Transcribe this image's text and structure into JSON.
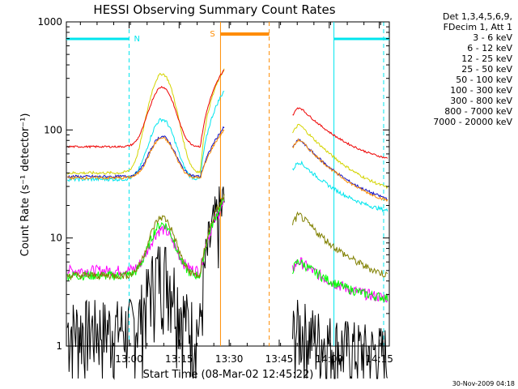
{
  "chart_data": {
    "type": "line",
    "title": "HESSI Observing Summary Count Rates",
    "xlabel": "Start Time (08-Mar-02 12:45:22)",
    "ylabel": "Count Rate (s⁻¹ detector⁻¹)",
    "y_scale": "log",
    "ylim": [
      1,
      1000
    ],
    "xlim_minutes": [
      -4.2,
      92.6
    ],
    "x_ticks": [
      {
        "label": "13:00",
        "value": 14.6
      },
      {
        "label": "13:15",
        "value": 29.6
      },
      {
        "label": "13:30",
        "value": 44.6
      },
      {
        "label": "13:45",
        "value": 59.6
      },
      {
        "label": "14:00",
        "value": 74.6
      },
      {
        "label": "14:15",
        "value": 89.6
      }
    ],
    "y_ticks": [
      {
        "label": "1",
        "value": 1
      },
      {
        "label": "10",
        "value": 10
      },
      {
        "label": "100",
        "value": 100
      },
      {
        "label": "1000",
        "value": 1000
      }
    ],
    "legend": {
      "header": [
        "Det 1,3,4,5,6,9,",
        "FDecim 1, Att 1"
      ],
      "placement": "right"
    },
    "series": [
      {
        "name": "3 - 6 keV",
        "color": "#000000"
      },
      {
        "name": "6 - 12 keV",
        "color": "#ff00ff"
      },
      {
        "name": "12 - 25 keV",
        "color": "#00ff00"
      },
      {
        "name": "25 - 50 keV",
        "color": "#00e5ee"
      },
      {
        "name": "50 - 100 keV",
        "color": "#d4d400"
      },
      {
        "name": "100 - 300 keV",
        "color": "#ee0000"
      },
      {
        "name": "300 - 800 keV",
        "color": "#1010c8"
      },
      {
        "name": "800 - 7000 keV",
        "color": "#ff8c00"
      },
      {
        "name": "7000 - 20000 keV",
        "color": "#808000"
      }
    ],
    "flags": {
      "night_label": "N",
      "saa_label": "S"
    },
    "timestamp": "30-Nov-2009 04:18"
  }
}
